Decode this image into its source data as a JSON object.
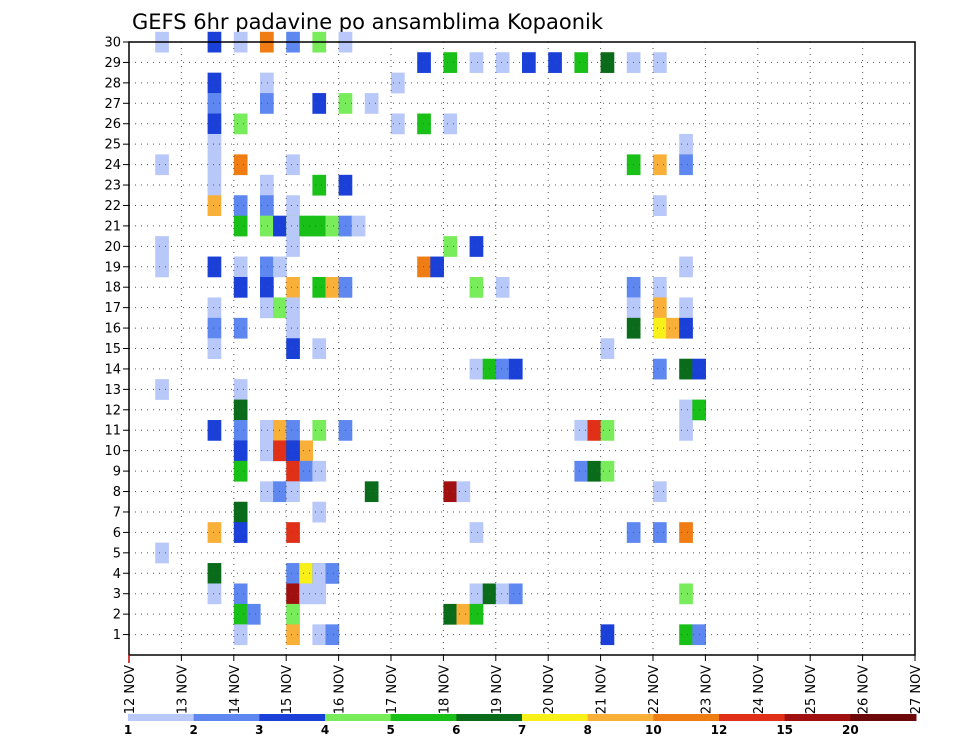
{
  "chart_data": {
    "type": "heatmap",
    "title": "GEFS 6hr padavine po ansamblima Kopaonik",
    "xlabel": "",
    "ylabel": "",
    "x_tick_labels": [
      "12 NOV",
      "13 NOV",
      "14 NOV",
      "15 NOV",
      "16 NOV",
      "17 NOV",
      "18 NOV",
      "19 NOV",
      "20 NOV",
      "21 NOV",
      "22 NOV",
      "23 NOV",
      "24 NOV",
      "25 NOV",
      "26 NOV",
      "27 NOV"
    ],
    "x_range_days": [
      12,
      27
    ],
    "y_tick_labels": [
      "1",
      "2",
      "3",
      "4",
      "5",
      "6",
      "7",
      "8",
      "9",
      "10",
      "11",
      "12",
      "13",
      "14",
      "15",
      "16",
      "17",
      "18",
      "19",
      "20",
      "21",
      "22",
      "23",
      "24",
      "25",
      "26",
      "27",
      "28",
      "29",
      "30"
    ],
    "y_range": [
      0,
      30
    ],
    "grid": true,
    "colorbar": {
      "placement": "bottom",
      "levels": [
        "1",
        "2",
        "3",
        "4",
        "5",
        "6",
        "7",
        "8",
        "10",
        "12",
        "15",
        "20"
      ],
      "colors": [
        "#b8c8f8",
        "#5e88f0",
        "#1a40d8",
        "#78ec5a",
        "#18c018",
        "#0a6c1a",
        "#f8f018",
        "#f8b038",
        "#f07c14",
        "#e03018",
        "#a01010",
        "#6c0808"
      ]
    },
    "cells": [
      [
        30,
        13,
        1
      ],
      [
        30,
        15,
        3
      ],
      [
        30,
        16,
        1
      ],
      [
        30,
        17,
        9
      ],
      [
        30,
        18,
        2
      ],
      [
        30,
        19,
        4
      ],
      [
        30,
        20,
        1
      ],
      [
        29,
        23,
        3
      ],
      [
        29,
        24,
        5
      ],
      [
        29,
        25,
        1
      ],
      [
        29,
        26,
        1
      ],
      [
        29,
        27,
        3
      ],
      [
        29,
        28,
        3
      ],
      [
        29,
        29,
        5
      ],
      [
        29,
        30,
        6
      ],
      [
        29,
        31,
        1
      ],
      [
        29,
        32,
        1
      ],
      [
        28,
        15,
        3
      ],
      [
        28,
        17,
        1
      ],
      [
        28,
        22,
        1
      ],
      [
        27,
        15,
        2
      ],
      [
        27,
        17,
        2
      ],
      [
        27,
        19,
        3
      ],
      [
        27,
        20,
        4
      ],
      [
        27,
        21,
        1
      ],
      [
        26,
        15,
        3
      ],
      [
        26,
        16,
        4
      ],
      [
        26,
        22,
        1
      ],
      [
        26,
        23,
        5
      ],
      [
        26,
        24,
        1
      ],
      [
        25,
        15,
        1
      ],
      [
        25,
        33,
        1
      ],
      [
        24,
        13,
        1
      ],
      [
        24,
        15,
        1
      ],
      [
        24,
        16,
        9
      ],
      [
        24,
        18,
        1
      ],
      [
        24,
        31,
        5
      ],
      [
        24,
        32,
        8
      ],
      [
        24,
        33,
        2
      ],
      [
        23,
        15,
        1
      ],
      [
        23,
        17,
        1
      ],
      [
        23,
        19,
        5
      ],
      [
        23,
        20,
        3
      ],
      [
        22,
        15,
        8
      ],
      [
        22,
        16,
        2
      ],
      [
        22,
        17,
        2
      ],
      [
        22,
        18,
        1
      ],
      [
        22,
        32,
        1
      ],
      [
        21,
        16,
        5
      ],
      [
        21,
        17,
        4
      ],
      [
        21,
        17,
        3
      ],
      [
        21,
        17,
        4
      ],
      [
        21,
        18,
        1
      ],
      [
        21,
        18,
        5
      ],
      [
        21,
        19,
        5
      ],
      [
        21,
        19,
        4
      ],
      [
        21,
        20,
        2
      ],
      [
        21,
        20,
        1
      ],
      [
        20,
        13,
        1
      ],
      [
        20,
        18,
        1
      ],
      [
        20,
        24,
        4
      ],
      [
        20,
        25,
        3
      ],
      [
        19,
        13,
        1
      ],
      [
        19,
        15,
        3
      ],
      [
        19,
        16,
        1
      ],
      [
        19,
        17,
        2
      ],
      [
        19,
        17,
        1
      ],
      [
        19,
        23,
        9
      ],
      [
        19,
        23,
        3
      ],
      [
        19,
        33,
        1
      ],
      [
        18,
        16,
        3
      ],
      [
        18,
        17,
        3
      ],
      [
        18,
        18,
        8
      ],
      [
        18,
        19,
        5
      ],
      [
        18,
        19,
        8
      ],
      [
        18,
        20,
        2
      ],
      [
        18,
        25,
        4
      ],
      [
        18,
        26,
        1
      ],
      [
        18,
        31,
        2
      ],
      [
        18,
        32,
        1
      ],
      [
        17,
        15,
        1
      ],
      [
        17,
        17,
        1
      ],
      [
        17,
        17,
        4
      ],
      [
        17,
        18,
        1
      ],
      [
        17,
        31,
        1
      ],
      [
        17,
        32,
        8
      ],
      [
        17,
        33,
        1
      ],
      [
        16,
        15,
        2
      ],
      [
        16,
        16,
        2
      ],
      [
        16,
        18,
        1
      ],
      [
        16,
        31,
        6
      ],
      [
        16,
        32,
        7
      ],
      [
        16,
        32,
        8
      ],
      [
        16,
        33,
        3
      ],
      [
        15,
        15,
        1
      ],
      [
        15,
        18,
        3
      ],
      [
        15,
        19,
        1
      ],
      [
        15,
        30,
        1
      ],
      [
        14,
        25,
        1
      ],
      [
        14,
        25,
        5
      ],
      [
        14,
        26,
        2
      ],
      [
        14,
        26,
        3
      ],
      [
        14,
        32,
        2
      ],
      [
        14,
        33,
        6
      ],
      [
        14,
        33,
        3
      ],
      [
        13,
        13,
        1
      ],
      [
        13,
        16,
        1
      ],
      [
        12,
        16,
        6
      ],
      [
        12,
        33,
        1
      ],
      [
        12,
        33,
        5
      ],
      [
        11,
        15,
        3
      ],
      [
        11,
        16,
        2
      ],
      [
        11,
        17,
        1
      ],
      [
        11,
        17,
        8
      ],
      [
        11,
        18,
        2
      ],
      [
        11,
        19,
        4
      ],
      [
        11,
        20,
        2
      ],
      [
        11,
        29,
        1
      ],
      [
        11,
        29,
        10
      ],
      [
        11,
        30,
        4
      ],
      [
        11,
        33,
        1
      ],
      [
        10,
        16,
        3
      ],
      [
        10,
        17,
        1
      ],
      [
        10,
        17,
        10
      ],
      [
        10,
        17,
        11
      ],
      [
        10,
        17,
        8
      ],
      [
        10,
        18,
        3
      ],
      [
        9,
        16,
        5
      ],
      [
        9,
        18,
        10
      ],
      [
        9,
        18,
        2
      ],
      [
        9,
        19,
        1
      ],
      [
        9,
        29,
        2
      ],
      [
        9,
        29,
        6
      ],
      [
        9,
        30,
        4
      ],
      [
        8,
        17,
        1
      ],
      [
        8,
        17,
        2
      ],
      [
        8,
        17,
        1
      ],
      [
        8,
        21,
        6
      ],
      [
        8,
        24,
        11
      ],
      [
        8,
        24,
        1
      ],
      [
        8,
        32,
        1
      ],
      [
        7,
        16,
        6
      ],
      [
        7,
        19,
        1
      ],
      [
        6,
        15,
        8
      ],
      [
        6,
        16,
        3
      ],
      [
        6,
        18,
        10
      ],
      [
        6,
        25,
        1
      ],
      [
        6,
        31,
        2
      ],
      [
        6,
        32,
        2
      ],
      [
        6,
        33,
        9
      ],
      [
        5,
        13,
        1
      ],
      [
        4,
        15,
        6
      ],
      [
        4,
        18,
        2
      ],
      [
        4,
        18,
        7
      ],
      [
        4,
        18,
        6
      ],
      [
        4,
        19,
        1
      ],
      [
        4,
        19,
        2
      ],
      [
        3,
        15,
        1
      ],
      [
        3,
        16,
        2
      ],
      [
        3,
        18,
        11
      ],
      [
        3,
        18,
        1
      ],
      [
        3,
        19,
        1
      ],
      [
        3,
        25,
        1
      ],
      [
        3,
        25,
        6
      ],
      [
        3,
        26,
        1
      ],
      [
        3,
        26,
        2
      ],
      [
        3,
        33,
        4
      ],
      [
        2,
        16,
        5
      ],
      [
        2,
        16,
        2
      ],
      [
        2,
        18,
        4
      ],
      [
        2,
        24,
        6
      ],
      [
        2,
        24,
        8
      ],
      [
        2,
        25,
        5
      ],
      [
        1,
        16,
        1
      ],
      [
        1,
        18,
        8
      ],
      [
        1,
        19,
        1
      ],
      [
        1,
        19,
        2
      ],
      [
        1,
        30,
        3
      ],
      [
        1,
        33,
        5
      ],
      [
        1,
        33,
        2
      ]
    ]
  }
}
